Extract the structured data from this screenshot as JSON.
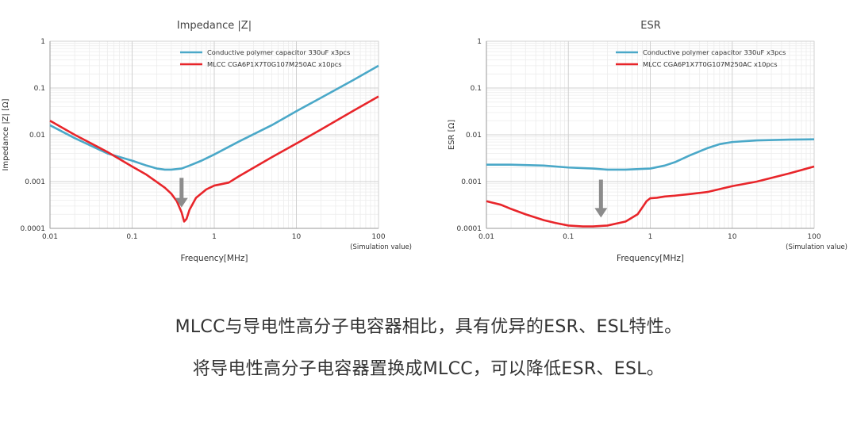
{
  "chart_data": [
    {
      "type": "line",
      "title": "Impedance |Z|",
      "xlabel": "Frequency[MHz]",
      "ylabel": "Impedance |Z| [Ω]",
      "note": "(Simulation value)",
      "x_scale": "log",
      "y_scale": "log",
      "xlim": [
        0.01,
        100
      ],
      "ylim": [
        0.0001,
        1
      ],
      "x_ticks": [
        "0.01",
        "0.1",
        "1",
        "10",
        "100"
      ],
      "y_ticks": [
        "0.0001",
        "0.001",
        "0.01",
        "0.1",
        "1"
      ],
      "grid": true,
      "legend_position": "top-right",
      "annotation": "down-arrow at MLCC resonance dip",
      "series": [
        {
          "name": "Conductive polymer capacitor 330uF x3pcs",
          "color": "#4aa8c8",
          "x": [
            0.01,
            0.02,
            0.05,
            0.1,
            0.15,
            0.2,
            0.25,
            0.3,
            0.4,
            0.5,
            0.7,
            1,
            2,
            5,
            10,
            20,
            50,
            100
          ],
          "y": [
            0.016,
            0.0085,
            0.004,
            0.0028,
            0.0022,
            0.0019,
            0.0018,
            0.0018,
            0.0019,
            0.0022,
            0.0028,
            0.0038,
            0.0072,
            0.016,
            0.032,
            0.062,
            0.15,
            0.3
          ]
        },
        {
          "name": "MLCC CGA6P1X7T0G107M250AC x10pcs",
          "color": "#e8252a",
          "x": [
            0.01,
            0.02,
            0.05,
            0.1,
            0.15,
            0.2,
            0.25,
            0.3,
            0.35,
            0.4,
            0.43,
            0.46,
            0.5,
            0.6,
            0.8,
            1,
            1.5,
            2,
            5,
            10,
            20,
            50,
            100
          ],
          "y": [
            0.02,
            0.01,
            0.0043,
            0.0021,
            0.0014,
            0.00098,
            0.00074,
            0.00055,
            0.00038,
            0.00022,
            0.00014,
            0.00016,
            0.00025,
            0.00045,
            0.00068,
            0.00082,
            0.00095,
            0.0013,
            0.0033,
            0.0065,
            0.013,
            0.033,
            0.066
          ]
        }
      ]
    },
    {
      "type": "line",
      "title": "ESR",
      "xlabel": "Frequency[MHz]",
      "ylabel": "ESR [Ω]",
      "note": "(Simulation value)",
      "x_scale": "log",
      "y_scale": "log",
      "xlim": [
        0.01,
        100
      ],
      "ylim": [
        0.0001,
        1
      ],
      "x_ticks": [
        "0.01",
        "0.1",
        "1",
        "10",
        "100"
      ],
      "y_ticks": [
        "0.0001",
        "0.001",
        "0.01",
        "0.1",
        "1"
      ],
      "grid": true,
      "legend_position": "top-right",
      "annotation": "down-arrow at MLCC ESR minimum",
      "series": [
        {
          "name": "Conductive polymer capacitor 330uF x3pcs",
          "color": "#4aa8c8",
          "x": [
            0.01,
            0.02,
            0.05,
            0.1,
            0.2,
            0.3,
            0.5,
            1,
            1.5,
            2,
            3,
            5,
            7,
            10,
            20,
            50,
            100
          ],
          "y": [
            0.0023,
            0.0023,
            0.0022,
            0.002,
            0.0019,
            0.0018,
            0.0018,
            0.0019,
            0.0022,
            0.0026,
            0.0036,
            0.0052,
            0.0063,
            0.007,
            0.0076,
            0.0079,
            0.008
          ]
        },
        {
          "name": "MLCC CGA6P1X7T0G107M250AC x10pcs",
          "color": "#e8252a",
          "x": [
            0.01,
            0.015,
            0.02,
            0.03,
            0.05,
            0.07,
            0.1,
            0.15,
            0.2,
            0.3,
            0.5,
            0.7,
            0.8,
            0.9,
            1,
            1.2,
            1.5,
            2,
            3,
            5,
            10,
            20,
            50,
            100
          ],
          "y": [
            0.00038,
            0.00032,
            0.00026,
            0.0002,
            0.00015,
            0.00013,
            0.000115,
            0.00011,
            0.00011,
            0.000115,
            0.00014,
            0.0002,
            0.00028,
            0.00038,
            0.00044,
            0.00045,
            0.00048,
            0.0005,
            0.00054,
            0.0006,
            0.0008,
            0.001,
            0.0015,
            0.0021
          ]
        }
      ]
    }
  ],
  "captions": {
    "line1": "MLCC与导电性高分子电容器相比，具有优异的ESR、ESL特性。",
    "line2": "将导电性高分子电容器置换成MLCC，可以降低ESR、ESL。"
  }
}
